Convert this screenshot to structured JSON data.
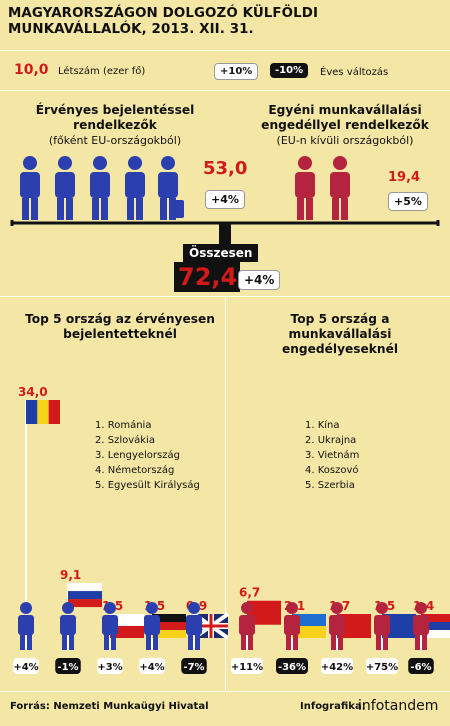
{
  "title": "MAGYARORSZÁGON DOLGOZÓ KÜLFÖLDI MUNKAVÁLLALÓK, 2013. XII. 31.",
  "legend": {
    "sample_value": "10,0",
    "sample_label": "Létszám (ezer fő)",
    "plus_sample": "+10%",
    "minus_sample": "-10%",
    "change_label": "Éves változás"
  },
  "left_group": {
    "title": "Érvényes bejelentéssel rendelkezők",
    "subtitle": "(főként EU-országokból)",
    "value": "53,0",
    "change": "+4%"
  },
  "right_group": {
    "title": "Egyéni munkavállalási engedéllyel rendelkezők",
    "subtitle": "(EU-n kívüli országokból)",
    "value": "19,4",
    "change": "+5%"
  },
  "total": {
    "label": "Összesen",
    "value": "72,4",
    "change": "+4%"
  },
  "top_left": {
    "title": "Top 5 ország az érvényesen bejelentetteknél",
    "list": [
      "1. Románia",
      "2. Szlovákia",
      "3. Lengyelország",
      "4. Németország",
      "5. Egyesült Királyság"
    ]
  },
  "top_right": {
    "title": "Top 5 ország a munkavállalási engedélyeseknél",
    "list": [
      "1. Kína",
      "2. Ukrajna",
      "3. Vietnám",
      "4. Koszovó",
      "5. Szerbia"
    ]
  },
  "chart_data": [
    {
      "type": "bar",
      "categories": [
        "Románia",
        "Szlovákia",
        "Lengyelország",
        "Németország",
        "Egyesült Királyság"
      ],
      "values": [
        34.0,
        9.1,
        1.5,
        1.5,
        0.9
      ],
      "value_labels": [
        "34,0",
        "9,1",
        "1,5",
        "1,5",
        "0,9"
      ],
      "changes": [
        "+4%",
        "-1%",
        "+3%",
        "+4%",
        "-7%"
      ],
      "title": "",
      "ylim": [
        0,
        34
      ]
    },
    {
      "type": "bar",
      "categories": [
        "Kína",
        "Ukrajna",
        "Vietnám",
        "Koszovó",
        "Szerbia"
      ],
      "values": [
        6.7,
        2.1,
        1.7,
        1.5,
        1.4
      ],
      "value_labels": [
        "6,7",
        "2,1",
        "1,7",
        "1,5",
        "1,4"
      ],
      "changes": [
        "+11%",
        "-36%",
        "+42%",
        "+75%",
        "-6%"
      ],
      "title": "",
      "ylim": [
        0,
        34
      ]
    }
  ],
  "footer": {
    "source": "Forrás: Nemzeti Munkaügyi Hivatal",
    "credit": "Infografika:",
    "brand": "infotandem"
  },
  "colors": {
    "background": "#f4e7a5",
    "accent": "#d31a1a",
    "blue_figure": "#2c3fae",
    "red_figure": "#b5243f"
  }
}
